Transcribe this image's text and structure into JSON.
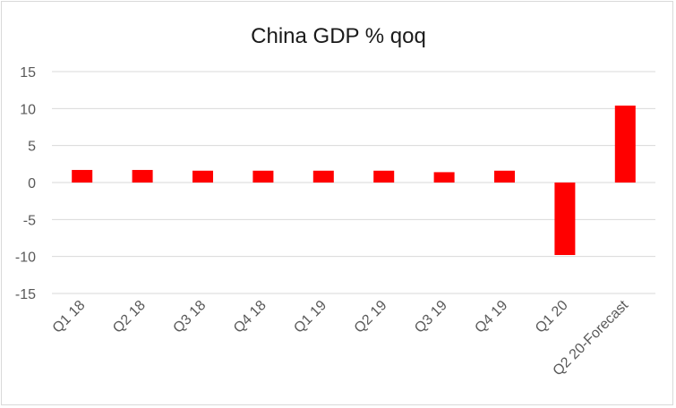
{
  "chart_data": {
    "type": "bar",
    "title": "China GDP % qoq",
    "xlabel": "",
    "ylabel": "",
    "categories": [
      "Q1 18",
      "Q2 18",
      "Q3 18",
      "Q4 18",
      "Q1 19",
      "Q2 19",
      "Q3 19",
      "Q4 19",
      "Q1 20",
      "Q2 20-Forecast"
    ],
    "values": [
      1.7,
      1.7,
      1.6,
      1.6,
      1.6,
      1.6,
      1.4,
      1.6,
      -9.8,
      10.4
    ],
    "ylim": [
      -15,
      15
    ],
    "yticks": [
      15,
      10,
      5,
      0,
      -5,
      -10,
      -15
    ],
    "ytick_labels": [
      "15",
      "10",
      "5",
      "0",
      "-5",
      "-10",
      "-15"
    ],
    "grid": true,
    "legend": "none",
    "bar_color": "#ff0000"
  }
}
